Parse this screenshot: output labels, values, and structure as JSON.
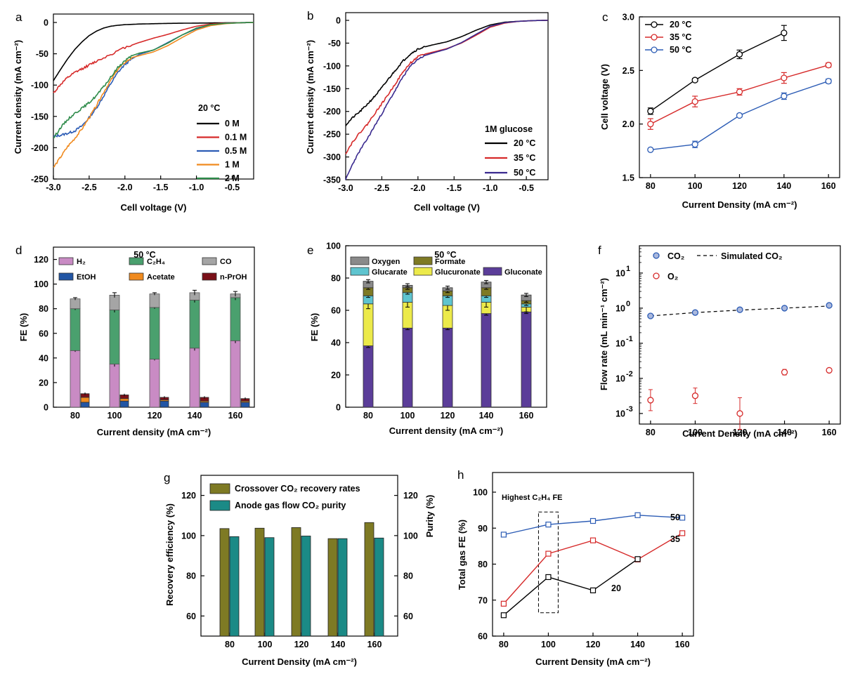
{
  "chart_data": [
    {
      "panel": "a",
      "type": "line",
      "xlabel": "Cell voltage (V)",
      "ylabel": "Current density (mA cm⁻²)",
      "xlim": [
        -3.0,
        -0.2
      ],
      "ylim": [
        -250,
        0
      ],
      "xticks": [
        "-3.0",
        "-2.5",
        "-2.0",
        "-1.5",
        "-1.0",
        "-0.5"
      ],
      "yticks": [
        "0",
        "-50",
        "-100",
        "-150",
        "-200",
        "-250"
      ],
      "legend_title": "20 °C",
      "legend_position": "right",
      "series": [
        {
          "name": "0 M",
          "color": "#000000",
          "x": [
            -3.0,
            -2.9,
            -2.8,
            -2.7,
            -2.6,
            -2.5,
            -2.4,
            -2.3,
            -2.2,
            -2.1,
            -2.0,
            -1.8,
            -1.6,
            -1.4,
            -1.2,
            -1.0,
            -0.8,
            -0.6,
            -0.4,
            -0.2
          ],
          "y": [
            -93,
            -75,
            -58,
            -43,
            -31,
            -21,
            -14,
            -9,
            -6,
            -4.5,
            -3.5,
            -2.5,
            -2,
            -1.5,
            -1.2,
            -1,
            -0.8,
            -0.5,
            -0.3,
            0
          ]
        },
        {
          "name": "0.1 M",
          "color": "#d62a2a",
          "x": [
            -3.0,
            -2.9,
            -2.8,
            -2.7,
            -2.6,
            -2.5,
            -2.4,
            -2.2,
            -2.0,
            -1.8,
            -1.6,
            -1.4,
            -1.2,
            -1.0,
            -0.8,
            -0.6,
            -0.4,
            -0.2
          ],
          "y": [
            -113,
            -99,
            -88,
            -80,
            -74,
            -68,
            -62,
            -51,
            -40,
            -32,
            -25,
            -19,
            -12,
            -6,
            -2.5,
            -1,
            -0.5,
            0
          ]
        },
        {
          "name": "0.5 M",
          "color": "#2c5cb5",
          "x": [
            -3.0,
            -2.9,
            -2.8,
            -2.7,
            -2.6,
            -2.5,
            -2.4,
            -2.3,
            -2.2,
            -2.1,
            -2.0,
            -1.9,
            -1.8,
            -1.6,
            -1.4,
            -1.2,
            -1.0,
            -0.8,
            -0.6,
            -0.4,
            -0.2
          ],
          "y": [
            -182,
            -180,
            -177,
            -173,
            -165,
            -152,
            -137,
            -118,
            -98,
            -80,
            -67,
            -58,
            -51,
            -44,
            -32,
            -20,
            -10,
            -4,
            -1.5,
            -0.5,
            0
          ]
        },
        {
          "name": "1 M",
          "color": "#f08a1e",
          "x": [
            -3.0,
            -2.9,
            -2.8,
            -2.7,
            -2.6,
            -2.5,
            -2.4,
            -2.3,
            -2.2,
            -2.1,
            -2.0,
            -1.9,
            -1.8,
            -1.6,
            -1.4,
            -1.2,
            -1.0,
            -0.8,
            -0.6,
            -0.4,
            -0.2
          ],
          "y": [
            -232,
            -215,
            -198,
            -185,
            -170,
            -152,
            -133,
            -112,
            -93,
            -75,
            -64,
            -56,
            -53,
            -47,
            -37,
            -24,
            -12,
            -5,
            -2,
            -0.5,
            0
          ]
        },
        {
          "name": "2 M",
          "color": "#2e8b4a",
          "x": [
            -3.0,
            -2.9,
            -2.8,
            -2.7,
            -2.6,
            -2.5,
            -2.4,
            -2.3,
            -2.2,
            -2.1,
            -2.0,
            -1.9,
            -1.8,
            -1.6,
            -1.4,
            -1.2,
            -1.0,
            -0.8,
            -0.6,
            -0.4,
            -0.2
          ],
          "y": [
            -185,
            -168,
            -155,
            -145,
            -137,
            -128,
            -117,
            -103,
            -88,
            -72,
            -61,
            -53,
            -49,
            -44,
            -33,
            -20,
            -9,
            -3.5,
            -1.5,
            -0.5,
            0
          ]
        }
      ]
    },
    {
      "panel": "b",
      "type": "line",
      "xlabel": "Cell voltage (V)",
      "ylabel": "Current density (mA cm⁻²)",
      "xlim": [
        -3.0,
        -0.2
      ],
      "ylim": [
        -350,
        0
      ],
      "xticks": [
        "-3.0",
        "-2.5",
        "-2.0",
        "-1.5",
        "-1.0",
        "-0.5"
      ],
      "yticks": [
        "0",
        "-50",
        "-100",
        "-150",
        "-200",
        "-250",
        "-300",
        "-350"
      ],
      "legend_title": "1M glucose",
      "legend_position": "right",
      "series": [
        {
          "name": "20 °C",
          "color": "#000000",
          "x": [
            -3.0,
            -2.9,
            -2.8,
            -2.7,
            -2.6,
            -2.5,
            -2.4,
            -2.3,
            -2.2,
            -2.1,
            -2.0,
            -1.9,
            -1.8,
            -1.6,
            -1.4,
            -1.2,
            -1.0,
            -0.8,
            -0.6,
            -0.4,
            -0.2
          ],
          "y": [
            -230,
            -213,
            -200,
            -184,
            -167,
            -148,
            -127,
            -107,
            -88,
            -73,
            -63,
            -58,
            -54,
            -47,
            -36,
            -22,
            -10,
            -4,
            -2,
            -0.5,
            0
          ]
        },
        {
          "name": "35 °C",
          "color": "#d62a2a",
          "x": [
            -3.0,
            -2.9,
            -2.8,
            -2.7,
            -2.6,
            -2.5,
            -2.4,
            -2.3,
            -2.2,
            -2.1,
            -2.0,
            -1.9,
            -1.8,
            -1.6,
            -1.4,
            -1.2,
            -1.0,
            -0.8,
            -0.6,
            -0.4,
            -0.2
          ],
          "y": [
            -292,
            -266,
            -246,
            -228,
            -205,
            -183,
            -160,
            -136,
            -112,
            -93,
            -80,
            -74,
            -70,
            -62,
            -50,
            -33,
            -15,
            -6,
            -2,
            -0.5,
            0
          ]
        },
        {
          "name": "50 °C",
          "color": "#3a2a8f",
          "x": [
            -3.0,
            -2.9,
            -2.8,
            -2.7,
            -2.6,
            -2.5,
            -2.4,
            -2.3,
            -2.2,
            -2.1,
            -2.0,
            -1.9,
            -1.8,
            -1.6,
            -1.4,
            -1.2,
            -1.0,
            -0.8,
            -0.6,
            -0.4,
            -0.2
          ],
          "y": [
            -350,
            -314,
            -285,
            -260,
            -232,
            -205,
            -177,
            -150,
            -122,
            -100,
            -85,
            -77,
            -72,
            -63,
            -49,
            -31,
            -13,
            -5,
            -2,
            -0.5,
            0
          ]
        }
      ]
    },
    {
      "panel": "c",
      "type": "line",
      "xlabel": "Current Density (mA cm⁻²)",
      "ylabel": "Cell voltage (V)",
      "xlim": [
        75,
        165
      ],
      "ylim": [
        1.5,
        3.0
      ],
      "xticks": [
        "80",
        "100",
        "120",
        "140",
        "160"
      ],
      "yticks": [
        "1.5",
        "2.0",
        "2.5",
        "3.0"
      ],
      "legend_position": "top-left",
      "series": [
        {
          "name": "20 °C",
          "color": "#000000",
          "x": [
            80,
            100,
            120,
            140
          ],
          "y": [
            2.12,
            2.41,
            2.65,
            2.85
          ],
          "err": [
            0.03,
            0.015,
            0.04,
            0.07
          ]
        },
        {
          "name": "35 °C",
          "color": "#d62a2a",
          "x": [
            80,
            100,
            120,
            140,
            160
          ],
          "y": [
            2.0,
            2.21,
            2.3,
            2.43,
            2.55
          ],
          "err": [
            0.05,
            0.05,
            0.03,
            0.05,
            0.02
          ]
        },
        {
          "name": "50 °C",
          "color": "#2c5cb5",
          "x": [
            80,
            100,
            120,
            140,
            160
          ],
          "y": [
            1.76,
            1.81,
            2.08,
            2.26,
            2.4
          ],
          "err": [
            0.01,
            0.03,
            0.015,
            0.03,
            0.02
          ]
        }
      ]
    },
    {
      "panel": "d",
      "type": "bar",
      "stacked": true,
      "title": "50 °C",
      "xlabel": "Current density (mA cm⁻²)",
      "ylabel": "FE (%)",
      "categories": [
        "80",
        "100",
        "120",
        "140",
        "160"
      ],
      "ylim": [
        0,
        130
      ],
      "yticks": [
        "0",
        "20",
        "40",
        "60",
        "80",
        "100",
        "120"
      ],
      "legend_position": "top",
      "gas_stack": [
        {
          "name": "H₂",
          "color": "#c98bc4",
          "values": [
            46,
            35,
            39,
            48,
            54
          ]
        },
        {
          "name": "C₂H₄",
          "color": "#4aa06e",
          "values": [
            34,
            44,
            42,
            39,
            35
          ]
        },
        {
          "name": "CO",
          "color": "#a5a5a5",
          "values": [
            8,
            12,
            11,
            6,
            3
          ]
        }
      ],
      "gas_err": [
        1,
        2,
        1,
        2,
        2
      ],
      "liquid_stack": [
        {
          "name": "EtOH",
          "color": "#2255a4",
          "values": [
            4,
            5,
            5,
            4,
            4
          ]
        },
        {
          "name": "Acetate",
          "color": "#f08a1e",
          "values": [
            4,
            2,
            1,
            1,
            1
          ]
        },
        {
          "name": "n-PrOH",
          "color": "#7a1018",
          "values": [
            3,
            3,
            2,
            3,
            2
          ]
        }
      ]
    },
    {
      "panel": "e",
      "type": "bar",
      "stacked": true,
      "title": "50 °C",
      "xlabel": "Current density (mA cm⁻²)",
      "ylabel": "FE (%)",
      "categories": [
        "80",
        "100",
        "120",
        "140",
        "160"
      ],
      "ylim": [
        0,
        100
      ],
      "yticks": [
        "0",
        "20",
        "40",
        "60",
        "80",
        "100"
      ],
      "legend_position": "top",
      "series": [
        {
          "name": "Gluconate",
          "color": "#5b3d99",
          "values": [
            38,
            49,
            49,
            58,
            59
          ]
        },
        {
          "name": "Glucuronate",
          "color": "#ecea4a",
          "values": [
            26,
            16,
            14,
            7,
            3
          ]
        },
        {
          "name": "Glucarate",
          "color": "#5ec4cf",
          "values": [
            5,
            6,
            6,
            4,
            2
          ]
        },
        {
          "name": "Formate",
          "color": "#7e7a24",
          "values": [
            5,
            3,
            3,
            5,
            2
          ]
        },
        {
          "name": "Oxygen",
          "color": "#8a8a8a",
          "values": [
            4,
            1.5,
            2,
            3.5,
            3.5
          ]
        }
      ]
    },
    {
      "panel": "f",
      "type": "scatter",
      "yscale": "log",
      "xlabel": "Current Density (mA cm⁻²)",
      "ylabel": "Flow rate (mL min⁻¹ cm⁻²)",
      "xlim": [
        75,
        165
      ],
      "ylim": [
        0.0005,
        60
      ],
      "xticks": [
        "80",
        "100",
        "120",
        "140",
        "160"
      ],
      "legend_position": "top",
      "series": [
        {
          "name": "CO₂",
          "color": "#2c5cb5",
          "x": [
            80,
            100,
            120,
            140,
            160
          ],
          "y": [
            0.6,
            0.75,
            0.9,
            1.0,
            1.2
          ]
        },
        {
          "name": "O₂",
          "color": "#d62a2a",
          "x": [
            80,
            100,
            120,
            140,
            160
          ],
          "y": [
            0.0024,
            0.0032,
            0.001,
            0.015,
            0.017
          ]
        },
        {
          "name": "Simulated CO₂",
          "color": "#000000",
          "x": [
            80,
            100,
            120,
            140,
            160
          ],
          "y": [
            0.6,
            0.75,
            0.88,
            1.0,
            1.15
          ]
        }
      ]
    },
    {
      "panel": "g",
      "type": "bar",
      "xlabel": "Current Density (mA cm⁻²)",
      "ylabel": "Recovery efficiency (%)",
      "ylabel_right": "Purity (%)",
      "categories": [
        "80",
        "100",
        "120",
        "140",
        "160"
      ],
      "ylim": [
        50,
        130
      ],
      "yticks": [
        "60",
        "80",
        "100",
        "120"
      ],
      "legend_position": "top-left",
      "series": [
        {
          "name": "Crossover CO₂ recovery rates",
          "color": "#7e7a24",
          "values": [
            103.5,
            103.7,
            104.0,
            98.5,
            106.5
          ]
        },
        {
          "name": "Anode gas flow CO₂ purity",
          "color": "#1b8a86",
          "values": [
            99.5,
            99.0,
            99.8,
            98.5,
            98.8
          ]
        }
      ]
    },
    {
      "panel": "h",
      "type": "line",
      "xlabel": "Current Density (mA cm⁻²)",
      "ylabel": "Total gas FE (%)",
      "xlim": [
        75,
        165
      ],
      "ylim": [
        60,
        100
      ],
      "xticks": [
        "80",
        "100",
        "120",
        "140",
        "160"
      ],
      "yticks": [
        "60",
        "70",
        "80",
        "90",
        "100"
      ],
      "annotation": "Highest C₂H₄ FE",
      "series": [
        {
          "name": "50",
          "color": "#2c5cb5",
          "x": [
            80,
            100,
            120,
            140,
            160
          ],
          "y": [
            88.2,
            91.0,
            92.0,
            93.6,
            92.9
          ]
        },
        {
          "name": "35",
          "color": "#d62a2a",
          "x": [
            80,
            100,
            120,
            140,
            160
          ],
          "y": [
            69.0,
            82.9,
            86.6,
            81.3,
            88.6
          ]
        },
        {
          "name": "20",
          "color": "#000000",
          "x": [
            80,
            100,
            120,
            140
          ],
          "y": [
            65.8,
            76.4,
            72.7,
            81.4
          ]
        }
      ]
    }
  ]
}
